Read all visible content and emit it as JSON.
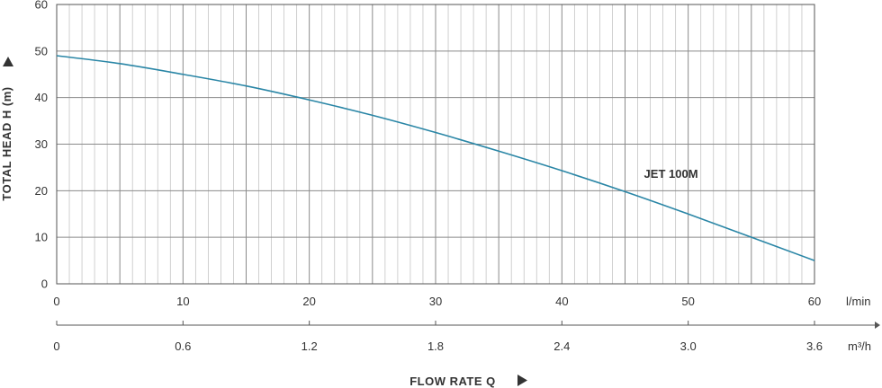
{
  "chart_data": {
    "type": "line",
    "ylabel": "TOTAL HEAD H (m)",
    "xlabel": "FLOW RATE Q",
    "ylim": [
      0,
      60
    ],
    "yticks": [
      0,
      10,
      20,
      30,
      40,
      50,
      60
    ],
    "xlim": [
      0,
      60
    ],
    "xticks": [
      0,
      10,
      20,
      30,
      40,
      50,
      60
    ],
    "x_unit": "l/min",
    "x2_ticks": [
      "0",
      "0.6",
      "1.2",
      "1.8",
      "2.4",
      "3.0",
      "3.6"
    ],
    "x2_unit": "m³/h",
    "grid": true,
    "series": [
      {
        "name": "JET 100M",
        "color": "#2a86a6",
        "x": [
          0,
          5,
          10,
          15,
          20,
          25,
          30,
          35,
          40,
          45,
          50,
          55,
          60
        ],
        "y": [
          49,
          47.3,
          45,
          42.5,
          39.5,
          36.2,
          32.5,
          28.5,
          24.3,
          19.8,
          15,
          10,
          5
        ]
      }
    ]
  }
}
